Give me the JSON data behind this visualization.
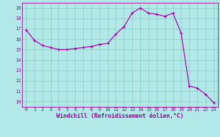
{
  "x": [
    0,
    1,
    2,
    3,
    4,
    5,
    6,
    7,
    8,
    9,
    10,
    11,
    12,
    13,
    14,
    15,
    16,
    17,
    18,
    19,
    20,
    21,
    22,
    23
  ],
  "y": [
    16.9,
    15.9,
    15.4,
    15.2,
    15.0,
    15.0,
    15.1,
    15.2,
    15.3,
    15.5,
    15.6,
    16.5,
    17.2,
    18.5,
    19.0,
    18.5,
    18.4,
    18.2,
    18.5,
    16.6,
    11.5,
    11.3,
    10.7,
    9.9
  ],
  "x_tick_labels": [
    "0",
    "1",
    "2",
    "3",
    "4",
    "5",
    "6",
    "7",
    "8",
    "9",
    "10",
    "11",
    "12",
    "13",
    "14",
    "15",
    "16",
    "17",
    "18",
    "19",
    "20",
    "21",
    "22",
    "23"
  ],
  "y_ticks": [
    10,
    11,
    12,
    13,
    14,
    15,
    16,
    17,
    18,
    19
  ],
  "ylim": [
    9.5,
    19.5
  ],
  "xlim": [
    -0.5,
    23.5
  ],
  "xlabel": "Windchill (Refroidissement éolien,°C)",
  "line_color": "#aa00aa",
  "marker": "+",
  "bg_color": "#b3e8e8",
  "grid_color": "#88ccbb",
  "tick_color": "#990099",
  "figsize": [
    3.2,
    2.0
  ],
  "dpi": 100,
  "tick_fontsize": 5.0,
  "xlabel_fontsize": 6.0
}
